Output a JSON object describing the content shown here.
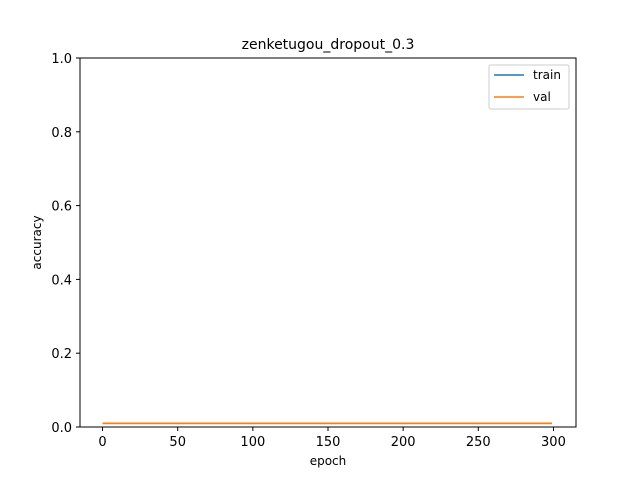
{
  "chart_data": {
    "type": "line",
    "title": "zenketugou_dropout_0.3",
    "xlabel": "epoch",
    "ylabel": "accuracy",
    "xlim": [
      -15,
      315
    ],
    "ylim": [
      0.0,
      1.0
    ],
    "xticks": [
      0,
      50,
      100,
      150,
      200,
      250,
      300
    ],
    "yticks": [
      0.0,
      0.2,
      0.4,
      0.6,
      0.8,
      1.0
    ],
    "xtick_labels": [
      "0",
      "50",
      "100",
      "150",
      "200",
      "250",
      "300"
    ],
    "ytick_labels": [
      "0.0",
      "0.2",
      "0.4",
      "0.6",
      "0.8",
      "1.0"
    ],
    "grid": false,
    "legend_position": "top-right",
    "series": [
      {
        "name": "train",
        "color": "#1f77b4",
        "x": [
          0,
          299
        ],
        "values": [
          0.01,
          0.01
        ]
      },
      {
        "name": "val",
        "color": "#ff7f0e",
        "x": [
          0,
          299
        ],
        "values": [
          0.01,
          0.01
        ]
      }
    ]
  }
}
